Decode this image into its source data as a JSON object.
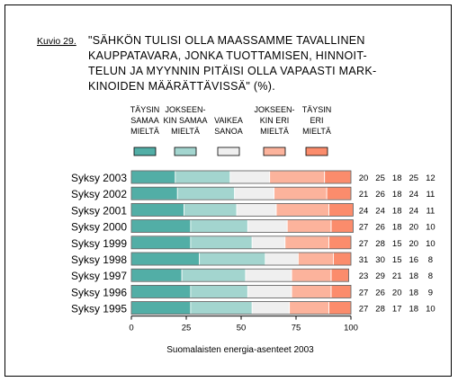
{
  "figure_label": "Kuvio 29.",
  "title_lines": [
    "\"SÄHKÖN TULISI OLLA MAASSAMME TAVALLINEN",
    "KAUPPATAVARA, JONKA TUOTTAMISEN, HINNOIT-",
    "TELUN JA MYYNNIN PITÄISI OLLA VAPAASTI MARK-",
    "KINOIDEN MÄÄRÄTTÄVISSÄ\" (%)."
  ],
  "source_note": "Suomalaisten energia-asenteet 2003",
  "chart_data": {
    "type": "bar",
    "orientation": "horizontal",
    "stacked": true,
    "xlim": [
      0,
      100
    ],
    "xticks": [
      0,
      25,
      50,
      75,
      100
    ],
    "grid": false,
    "legend_position": "top",
    "categories": [
      "Syksy 2003",
      "Syksy 2002",
      "Syksy 2001",
      "Syksy 2000",
      "Syksy 1999",
      "Syksy 1998",
      "Syksy 1997",
      "Syksy 1996",
      "Syksy 1995"
    ],
    "series": [
      {
        "name_lines": [
          "TÄYSIN",
          "SAMAA",
          "MIELTÄ"
        ],
        "color": "#52aea6",
        "values": [
          20,
          21,
          24,
          27,
          27,
          31,
          23,
          27,
          27
        ]
      },
      {
        "name_lines": [
          "JOKSEEN-",
          "KIN SAMAA",
          "MIELTÄ"
        ],
        "color": "#a3d5cf",
        "values": [
          25,
          26,
          24,
          26,
          28,
          30,
          29,
          26,
          28
        ]
      },
      {
        "name_lines": [
          "VAIKEA",
          "SANOA"
        ],
        "color": "#efefef",
        "values": [
          18,
          18,
          18,
          18,
          15,
          15,
          21,
          20,
          17
        ]
      },
      {
        "name_lines": [
          "JOKSEEN-",
          "KIN ERI",
          "MIELTÄ"
        ],
        "color": "#fcb39c",
        "values": [
          25,
          24,
          24,
          20,
          20,
          16,
          18,
          18,
          18
        ]
      },
      {
        "name_lines": [
          "TÄYSIN",
          "ERI",
          "MIELTÄ"
        ],
        "color": "#fb8c6c",
        "values": [
          12,
          11,
          11,
          10,
          10,
          8,
          8,
          9,
          10
        ]
      }
    ]
  }
}
